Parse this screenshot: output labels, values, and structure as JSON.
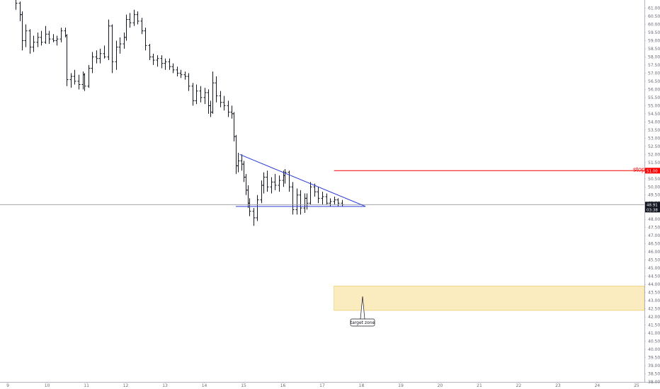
{
  "chart_data": {
    "type": "bar",
    "y_axis": {
      "range": [
        38.0,
        61.5
      ],
      "ticks": [
        "38.00",
        "38.50",
        "39.00",
        "39.50",
        "40.00",
        "40.50",
        "41.00",
        "41.50",
        "42.00",
        "42.50",
        "43.00",
        "43.50",
        "44.00",
        "44.50",
        "45.00",
        "45.50",
        "46.00",
        "46.50",
        "47.00",
        "47.50",
        "48.00",
        "48.50",
        "49.00",
        "49.50",
        "50.00",
        "50.50",
        "51.00",
        "51.50",
        "52.00",
        "52.50",
        "53.00",
        "53.50",
        "54.00",
        "54.50",
        "55.00",
        "55.50",
        "56.00",
        "56.50",
        "57.00",
        "57.50",
        "58.00",
        "58.50",
        "59.00",
        "59.50",
        "60.00",
        "60.50",
        "61.00"
      ]
    },
    "x_axis": {
      "range": [
        8.8,
        25.2
      ],
      "ticks": [
        "9",
        "10",
        "11",
        "12",
        "13",
        "14",
        "15",
        "16",
        "17",
        "18",
        "19",
        "20",
        "21",
        "22",
        "23",
        "24",
        "25"
      ]
    },
    "ohlc": [
      {
        "x": 9.2,
        "o": 61.6,
        "h": 61.7,
        "l": 60.9,
        "c": 61.3
      },
      {
        "x": 9.3,
        "o": 61.3,
        "h": 61.4,
        "l": 60.2,
        "c": 60.6
      },
      {
        "x": 9.35,
        "o": 60.6,
        "h": 60.8,
        "l": 58.4,
        "c": 59.0
      },
      {
        "x": 9.45,
        "o": 59.0,
        "h": 60.0,
        "l": 58.6,
        "c": 59.6
      },
      {
        "x": 9.55,
        "o": 59.6,
        "h": 59.7,
        "l": 58.2,
        "c": 58.6
      },
      {
        "x": 9.65,
        "o": 58.6,
        "h": 59.3,
        "l": 58.3,
        "c": 58.9
      },
      {
        "x": 9.75,
        "o": 58.9,
        "h": 59.5,
        "l": 58.6,
        "c": 59.2
      },
      {
        "x": 9.85,
        "o": 59.2,
        "h": 59.6,
        "l": 58.7,
        "c": 58.9
      },
      {
        "x": 9.95,
        "o": 58.9,
        "h": 59.9,
        "l": 58.8,
        "c": 59.4
      },
      {
        "x": 10.05,
        "o": 59.4,
        "h": 59.6,
        "l": 58.8,
        "c": 59.1
      },
      {
        "x": 10.15,
        "o": 59.1,
        "h": 59.4,
        "l": 58.9,
        "c": 59.0
      },
      {
        "x": 10.25,
        "o": 59.0,
        "h": 59.3,
        "l": 58.7,
        "c": 59.1
      },
      {
        "x": 10.35,
        "o": 59.1,
        "h": 59.8,
        "l": 58.9,
        "c": 59.6
      },
      {
        "x": 10.45,
        "o": 59.6,
        "h": 59.8,
        "l": 59.2,
        "c": 59.3
      },
      {
        "x": 10.5,
        "o": 59.3,
        "h": 59.4,
        "l": 56.2,
        "c": 56.6
      },
      {
        "x": 10.6,
        "o": 56.6,
        "h": 57.0,
        "l": 56.1,
        "c": 56.8
      },
      {
        "x": 10.7,
        "o": 56.8,
        "h": 57.2,
        "l": 56.3,
        "c": 56.5
      },
      {
        "x": 10.8,
        "o": 56.5,
        "h": 56.9,
        "l": 56.0,
        "c": 56.3
      },
      {
        "x": 10.9,
        "o": 56.3,
        "h": 57.1,
        "l": 56.0,
        "c": 56.9
      },
      {
        "x": 10.95,
        "o": 56.9,
        "h": 57.0,
        "l": 55.9,
        "c": 56.2
      },
      {
        "x": 11.05,
        "o": 56.2,
        "h": 57.5,
        "l": 56.1,
        "c": 57.3
      },
      {
        "x": 11.15,
        "o": 57.3,
        "h": 58.3,
        "l": 57.0,
        "c": 58.0
      },
      {
        "x": 11.25,
        "o": 58.0,
        "h": 58.4,
        "l": 57.6,
        "c": 57.9
      },
      {
        "x": 11.35,
        "o": 57.9,
        "h": 58.5,
        "l": 57.6,
        "c": 58.2
      },
      {
        "x": 11.45,
        "o": 58.2,
        "h": 58.7,
        "l": 57.9,
        "c": 58.0
      },
      {
        "x": 11.55,
        "o": 58.0,
        "h": 60.3,
        "l": 57.8,
        "c": 59.9
      },
      {
        "x": 11.65,
        "o": 59.9,
        "h": 60.0,
        "l": 57.0,
        "c": 57.7
      },
      {
        "x": 11.75,
        "o": 57.7,
        "h": 59.0,
        "l": 57.2,
        "c": 58.6
      },
      {
        "x": 11.85,
        "o": 58.6,
        "h": 59.2,
        "l": 58.2,
        "c": 58.8
      },
      {
        "x": 11.95,
        "o": 58.8,
        "h": 59.5,
        "l": 58.5,
        "c": 59.2
      },
      {
        "x": 12.0,
        "o": 59.2,
        "h": 60.6,
        "l": 59.0,
        "c": 60.3
      },
      {
        "x": 12.1,
        "o": 60.3,
        "h": 60.7,
        "l": 59.8,
        "c": 60.1
      },
      {
        "x": 12.2,
        "o": 60.1,
        "h": 60.9,
        "l": 59.9,
        "c": 60.6
      },
      {
        "x": 12.3,
        "o": 60.6,
        "h": 60.8,
        "l": 60.0,
        "c": 60.2
      },
      {
        "x": 12.4,
        "o": 60.2,
        "h": 60.4,
        "l": 59.4,
        "c": 59.6
      },
      {
        "x": 12.5,
        "o": 59.6,
        "h": 59.8,
        "l": 58.4,
        "c": 58.7
      },
      {
        "x": 12.6,
        "o": 58.7,
        "h": 58.8,
        "l": 57.8,
        "c": 58.0
      },
      {
        "x": 12.7,
        "o": 58.0,
        "h": 58.2,
        "l": 57.5,
        "c": 57.8
      },
      {
        "x": 12.8,
        "o": 57.8,
        "h": 58.1,
        "l": 57.4,
        "c": 57.9
      },
      {
        "x": 12.9,
        "o": 57.9,
        "h": 58.1,
        "l": 57.3,
        "c": 57.6
      },
      {
        "x": 13.0,
        "o": 57.6,
        "h": 57.9,
        "l": 57.2,
        "c": 57.7
      },
      {
        "x": 13.1,
        "o": 57.7,
        "h": 57.9,
        "l": 57.2,
        "c": 57.4
      },
      {
        "x": 13.2,
        "o": 57.4,
        "h": 57.6,
        "l": 57.0,
        "c": 57.2
      },
      {
        "x": 13.3,
        "o": 57.2,
        "h": 57.4,
        "l": 56.8,
        "c": 57.0
      },
      {
        "x": 13.4,
        "o": 57.0,
        "h": 57.2,
        "l": 56.7,
        "c": 56.9
      },
      {
        "x": 13.5,
        "o": 56.9,
        "h": 57.1,
        "l": 56.6,
        "c": 56.8
      },
      {
        "x": 13.6,
        "o": 56.8,
        "h": 57.0,
        "l": 55.9,
        "c": 56.2
      },
      {
        "x": 13.7,
        "o": 56.2,
        "h": 56.4,
        "l": 55.0,
        "c": 55.3
      },
      {
        "x": 13.8,
        "o": 55.3,
        "h": 56.3,
        "l": 55.1,
        "c": 55.9
      },
      {
        "x": 13.9,
        "o": 55.9,
        "h": 56.2,
        "l": 55.2,
        "c": 55.5
      },
      {
        "x": 14.0,
        "o": 55.5,
        "h": 56.1,
        "l": 55.1,
        "c": 55.8
      },
      {
        "x": 14.1,
        "o": 55.8,
        "h": 56.0,
        "l": 54.5,
        "c": 55.0
      },
      {
        "x": 14.15,
        "o": 55.0,
        "h": 55.3,
        "l": 54.3,
        "c": 54.6
      },
      {
        "x": 14.2,
        "o": 54.6,
        "h": 57.1,
        "l": 54.5,
        "c": 56.4
      },
      {
        "x": 14.3,
        "o": 56.4,
        "h": 56.8,
        "l": 55.2,
        "c": 55.6
      },
      {
        "x": 14.4,
        "o": 55.6,
        "h": 55.9,
        "l": 54.9,
        "c": 55.2
      },
      {
        "x": 14.5,
        "o": 55.2,
        "h": 55.6,
        "l": 54.7,
        "c": 55.0
      },
      {
        "x": 14.6,
        "o": 55.0,
        "h": 55.3,
        "l": 54.3,
        "c": 54.6
      },
      {
        "x": 14.7,
        "o": 54.6,
        "h": 55.0,
        "l": 54.2,
        "c": 54.5
      },
      {
        "x": 14.75,
        "o": 54.5,
        "h": 54.6,
        "l": 52.8,
        "c": 53.1
      },
      {
        "x": 14.8,
        "o": 53.1,
        "h": 53.2,
        "l": 50.8,
        "c": 51.3
      },
      {
        "x": 14.85,
        "o": 51.3,
        "h": 52.1,
        "l": 50.9,
        "c": 51.6
      },
      {
        "x": 14.95,
        "o": 51.6,
        "h": 52.0,
        "l": 51.0,
        "c": 51.4
      },
      {
        "x": 15.0,
        "o": 51.4,
        "h": 51.6,
        "l": 50.3,
        "c": 50.6
      },
      {
        "x": 15.05,
        "o": 50.6,
        "h": 50.8,
        "l": 49.5,
        "c": 49.8
      },
      {
        "x": 15.1,
        "o": 49.8,
        "h": 50.1,
        "l": 48.7,
        "c": 49.0
      },
      {
        "x": 15.15,
        "o": 49.0,
        "h": 49.3,
        "l": 48.2,
        "c": 48.5
      },
      {
        "x": 15.25,
        "o": 48.5,
        "h": 48.7,
        "l": 47.6,
        "c": 48.1
      },
      {
        "x": 15.35,
        "o": 48.1,
        "h": 49.5,
        "l": 47.9,
        "c": 49.2
      },
      {
        "x": 15.45,
        "o": 49.2,
        "h": 50.4,
        "l": 49.0,
        "c": 50.1
      },
      {
        "x": 15.5,
        "o": 50.1,
        "h": 50.9,
        "l": 49.6,
        "c": 50.6
      },
      {
        "x": 15.6,
        "o": 50.6,
        "h": 51.0,
        "l": 49.7,
        "c": 50.0
      },
      {
        "x": 15.7,
        "o": 50.0,
        "h": 50.6,
        "l": 49.6,
        "c": 50.3
      },
      {
        "x": 15.8,
        "o": 50.3,
        "h": 50.8,
        "l": 49.8,
        "c": 50.1
      },
      {
        "x": 15.9,
        "o": 50.1,
        "h": 50.7,
        "l": 49.7,
        "c": 50.4
      },
      {
        "x": 16.0,
        "o": 50.4,
        "h": 51.0,
        "l": 50.0,
        "c": 50.7
      },
      {
        "x": 16.05,
        "o": 50.7,
        "h": 51.1,
        "l": 50.2,
        "c": 50.9
      },
      {
        "x": 16.15,
        "o": 50.9,
        "h": 51.0,
        "l": 49.7,
        "c": 50.0
      },
      {
        "x": 16.25,
        "o": 50.0,
        "h": 50.3,
        "l": 48.3,
        "c": 48.6
      },
      {
        "x": 16.35,
        "o": 48.6,
        "h": 49.9,
        "l": 48.3,
        "c": 49.5
      },
      {
        "x": 16.45,
        "o": 49.5,
        "h": 49.8,
        "l": 48.3,
        "c": 48.7
      },
      {
        "x": 16.55,
        "o": 48.7,
        "h": 49.6,
        "l": 48.4,
        "c": 49.3
      },
      {
        "x": 16.6,
        "o": 49.3,
        "h": 49.6,
        "l": 48.6,
        "c": 49.0
      },
      {
        "x": 16.7,
        "o": 49.0,
        "h": 50.3,
        "l": 48.9,
        "c": 50.0
      },
      {
        "x": 16.8,
        "o": 50.0,
        "h": 50.2,
        "l": 49.4,
        "c": 49.7
      },
      {
        "x": 16.9,
        "o": 49.7,
        "h": 50.0,
        "l": 49.0,
        "c": 49.3
      },
      {
        "x": 17.0,
        "o": 49.3,
        "h": 49.7,
        "l": 48.9,
        "c": 49.4
      },
      {
        "x": 17.1,
        "o": 49.4,
        "h": 49.6,
        "l": 48.9,
        "c": 49.0
      },
      {
        "x": 17.2,
        "o": 49.0,
        "h": 49.3,
        "l": 48.8,
        "c": 49.1
      },
      {
        "x": 17.3,
        "o": 49.1,
        "h": 49.4,
        "l": 48.9,
        "c": 49.2
      },
      {
        "x": 17.4,
        "o": 49.2,
        "h": 49.3,
        "l": 48.8,
        "c": 49.0
      },
      {
        "x": 17.5,
        "o": 49.0,
        "h": 49.2,
        "l": 48.8,
        "c": 48.9
      }
    ],
    "trendlines": [
      {
        "kind": "resistance",
        "color": "#2a3cd8",
        "points": [
          [
            14.9,
            52.0
          ],
          [
            18.1,
            48.8
          ]
        ]
      },
      {
        "kind": "support",
        "color": "#2a3cd8",
        "points": [
          [
            14.8,
            48.8
          ],
          [
            18.1,
            48.8
          ]
        ]
      }
    ],
    "last_price": {
      "value": 48.91,
      "label": "48.91",
      "countdown": "03:38"
    },
    "stop_level": {
      "value": 51.0,
      "label": "51.00",
      "text": "stop",
      "color": "#ff0000",
      "x_start": 17.3
    },
    "target_zone": {
      "y_low": 42.4,
      "y_high": 43.9,
      "x_start": 17.3,
      "label": "target zone",
      "color": "#f5dc8a"
    }
  }
}
